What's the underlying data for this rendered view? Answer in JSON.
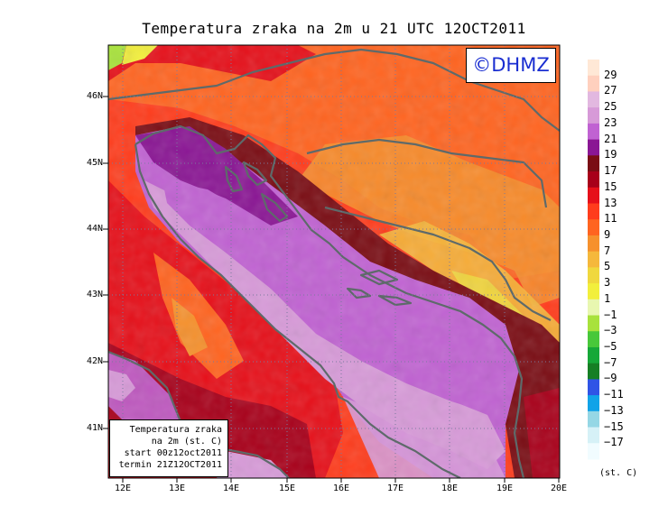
{
  "title": "Temperatura zraka na 2m u 21 UTC 12OCT2011",
  "logo": "©DHMZ",
  "info_box": {
    "line1": "Temperatura zraka",
    "line2": "na 2m (st. C)",
    "line3": "start 00z12oct2011",
    "line4": "termin 21Z12OCT2011"
  },
  "axes": {
    "y_ticks": [
      "46N",
      "45N",
      "44N",
      "43N",
      "42N",
      "41N"
    ],
    "x_ticks": [
      "12E",
      "13E",
      "14E",
      "15E",
      "16E",
      "17E",
      "18E",
      "19E",
      "20E"
    ]
  },
  "colorbar": {
    "units": "(st. C)",
    "labels": [
      "29",
      "27",
      "25",
      "23",
      "21",
      "19",
      "17",
      "15",
      "13",
      "11",
      "9",
      "7",
      "5",
      "3",
      "1",
      "−1",
      "−3",
      "−5",
      "−7",
      "−9",
      "−11",
      "−13",
      "−15",
      "−17"
    ],
    "colors": [
      "#ffe8d6",
      "#ffd0be",
      "#e2b8e0",
      "#d79ad8",
      "#c062d2",
      "#8a1694",
      "#7a0d14",
      "#a8001a",
      "#e6101a",
      "#ff3c1c",
      "#ff6420",
      "#f6912d",
      "#f5b83c",
      "#f0d83e",
      "#f2ef3c",
      "#e8f7b0",
      "#a8e23c",
      "#48c83a",
      "#16a838",
      "#167f24",
      "#2f54e6",
      "#11a3e8",
      "#95d7e5",
      "#d6f1f7",
      "#f1fcff"
    ]
  }
}
